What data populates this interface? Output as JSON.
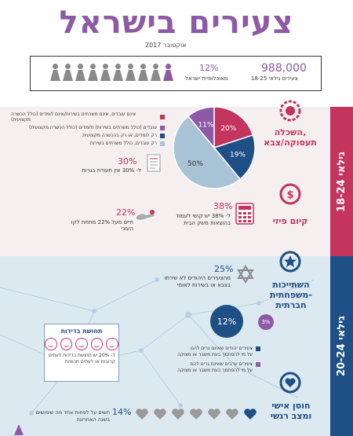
{
  "header": {
    "title": "צעירים בישראל",
    "subtitle": "אוקטובר 2017"
  },
  "stats": {
    "population_value": "988,000",
    "population_label": "צעירים גילאי 18-25",
    "share_value": "12%",
    "share_label": "מאוכלוסיית ישראל",
    "people_total": 10,
    "people_highlighted": 1
  },
  "section1": {
    "age_label": "גילאי 18-24",
    "category1_label_line1": "השכלה,",
    "category1_label_line2": "תעסוקה/צבא",
    "category2_label": "קיום פיזי",
    "pie": {
      "slices": [
        {
          "label": "20%",
          "value": 20,
          "color": "#c4345c"
        },
        {
          "label": "19%",
          "value": 19,
          "color": "#1e4f85"
        },
        {
          "label": "50%",
          "value": 50,
          "color": "#a9c3d6"
        },
        {
          "label": "11%",
          "value": 11,
          "color": "#8e5aa6"
        }
      ]
    },
    "legend": [
      {
        "text": "אינם עובדים, אינם משרתים בשירות/אינם לומדים (כולל הכשרה מקצועית)",
        "color": "#c4345c"
      },
      {
        "text": "עובדים (כולל משרתים בשירות) ולומדים (כולל הכשרה מקצועית)",
        "color": "#8e5aa6"
      },
      {
        "text": "רק לומדים, או רק בהכשרה מקצועית",
        "color": "#1e4f85"
      },
      {
        "text": "רק עובדים, כולל משרתים בשירות",
        "color": "#a9c3d6"
      }
    ],
    "stat_30_value": "30%",
    "stat_30_text": "ל- 30% אין תעודת בגרות",
    "stat_38_value": "38%",
    "stat_38_line1": "ל- 38% יש קושי לעמוד",
    "stat_38_line2": "בהוצאות משק הבית",
    "stat_22_value": "22%",
    "stat_22_text": "חיים מעל 22% מתחת לקו העוני"
  },
  "section2": {
    "age_label": "גילאי 20-24",
    "category1_label_line1": "השתייכות",
    "category1_label_line2": "משפחתית-",
    "category1_label_line3": "חברתית",
    "category2_label_line1": "חוסן אישי",
    "category2_label_line2": "ומצב רגשי",
    "stat_25_value": "25%",
    "stat_25_line1": "מהצעירים היהודים לא שירתו",
    "stat_25_line2": "בצבא או בשירות לאומי",
    "circle_value": "12%",
    "small_circle_value": "3%",
    "items": [
      {
        "line1": "צעירים יהודים שאינם גרים להם",
        "line2": "על מי להסתמך בעת משבר או מצוקה",
        "color": "#1e4f85"
      },
      {
        "line1": "צעירים ערבים שאינם גרים להם",
        "line2": "על מי להסתמך בעת משבר או מצוקה",
        "color": "#8e5aa6"
      }
    ],
    "loneliness_box_title": "תחושת בדידות",
    "loneliness_line1": "ל- 20% יש תחושת בדידות לעתים",
    "loneliness_line2": "קרובות או לעתים תכופות",
    "stat_14_value": "14%",
    "stat_14_line1": "חשים על לפחות אחד מה שימושים",
    "stat_14_line2": "בשנה האחרונה",
    "hearts_total": 7,
    "hearts_highlighted": 1
  },
  "colors": {
    "pink": "#c4345c",
    "blue": "#1e4f85",
    "purple": "#8e5aa6",
    "grey": "#8a8a8a"
  }
}
